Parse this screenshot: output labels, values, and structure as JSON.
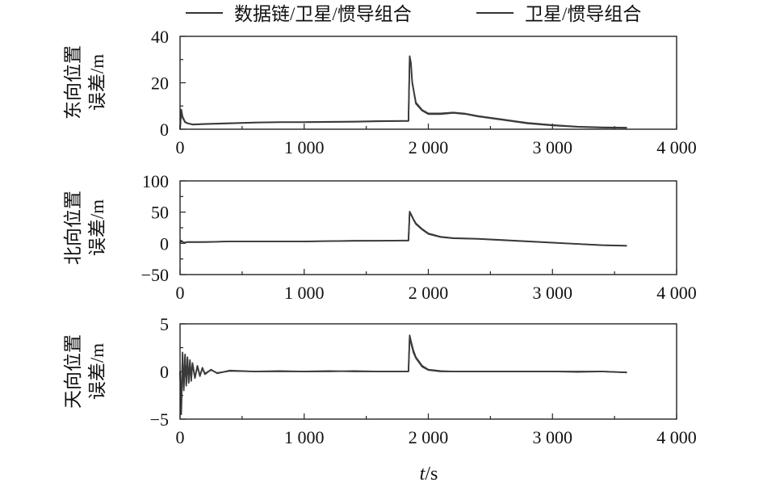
{
  "legend": {
    "items": [
      {
        "label": "数据链/卫星/惯导组合",
        "color": "#333333"
      },
      {
        "label": "卫星/惯导组合",
        "color": "#333333"
      }
    ]
  },
  "xaxis_title": {
    "italic": "t",
    "rest": "/s"
  },
  "chart_data": [
    {
      "type": "line",
      "ylabel": [
        "东向位置",
        "误差/m"
      ],
      "xlim": [
        0,
        4000
      ],
      "ylim": [
        0,
        40
      ],
      "xticks": [
        0,
        1000,
        2000,
        3000,
        4000
      ],
      "xtick_labels": [
        "0",
        "1 000",
        "2 000",
        "3 000",
        "4 000"
      ],
      "yticks": [
        0,
        20,
        40
      ],
      "ytick_labels": [
        "0",
        "20",
        "40"
      ],
      "grid": false,
      "series": [
        {
          "name": "数据链/卫星/惯导组合",
          "x": [
            0,
            10,
            20,
            40,
            60,
            100,
            200,
            400,
            600,
            800,
            1000,
            1200,
            1400,
            1600,
            1800,
            1840,
            1850,
            1860,
            1870,
            1900,
            1950,
            2000,
            2100,
            2200,
            2300,
            2400,
            2600,
            2800,
            3000,
            3200,
            3400,
            3600
          ],
          "y": [
            0,
            8,
            5,
            3,
            2.5,
            2,
            2.2,
            2.5,
            2.8,
            3,
            3,
            3.1,
            3.2,
            3.4,
            3.5,
            3.5,
            31,
            28,
            20,
            11,
            8,
            6.5,
            6.5,
            7,
            6.5,
            5.5,
            4,
            2.5,
            1.6,
            1,
            0.7,
            0.6
          ]
        },
        {
          "name": "卫星/惯导组合",
          "x": [
            0,
            10,
            20,
            40,
            60,
            100,
            200,
            400,
            600,
            800,
            1000,
            1200,
            1400,
            1600,
            1800,
            1840,
            1850,
            1860,
            1870,
            1900,
            1950,
            2000,
            2100,
            2200,
            2300,
            2400,
            2600,
            2800,
            3000,
            3200,
            3400,
            3600
          ],
          "y": [
            0,
            8.5,
            5.5,
            3.2,
            2.6,
            2.1,
            2.3,
            2.6,
            2.9,
            3.1,
            3.1,
            3.2,
            3.3,
            3.5,
            3.6,
            3.6,
            31.5,
            28.5,
            20.5,
            11.5,
            8.3,
            6.8,
            6.8,
            7.2,
            6.7,
            5.7,
            4.2,
            2.7,
            1.8,
            1.1,
            0.8,
            0.7
          ]
        }
      ]
    },
    {
      "type": "line",
      "ylabel": [
        "北向位置",
        "误差/m"
      ],
      "xlim": [
        0,
        4000
      ],
      "ylim": [
        -50,
        100
      ],
      "xticks": [
        0,
        1000,
        2000,
        3000,
        4000
      ],
      "xtick_labels": [
        "0",
        "1 000",
        "2 000",
        "3 000",
        "4 000"
      ],
      "yticks": [
        -50,
        0,
        50,
        100
      ],
      "ytick_labels": [
        "−50",
        "0",
        "50",
        "100"
      ],
      "grid": false,
      "series": [
        {
          "name": "数据链/卫星/惯导组合",
          "x": [
            0,
            10,
            30,
            60,
            100,
            200,
            400,
            600,
            800,
            1000,
            1200,
            1400,
            1600,
            1800,
            1840,
            1850,
            1860,
            1880,
            1900,
            1950,
            2000,
            2100,
            2200,
            2400,
            2600,
            2800,
            3000,
            3200,
            3400,
            3600
          ],
          "y": [
            0,
            4,
            1,
            2,
            2,
            2,
            3,
            3,
            3,
            3,
            3.5,
            4,
            4,
            4.5,
            4.5,
            50,
            46,
            38,
            31,
            22,
            15,
            10,
            8,
            7,
            5,
            3,
            1,
            -1,
            -3,
            -4
          ]
        },
        {
          "name": "卫星/惯导组合",
          "x": [
            0,
            10,
            30,
            60,
            100,
            200,
            400,
            600,
            800,
            1000,
            1200,
            1400,
            1600,
            1800,
            1840,
            1850,
            1860,
            1880,
            1900,
            1950,
            2000,
            2100,
            2200,
            2400,
            2600,
            2800,
            3000,
            3200,
            3400,
            3600
          ],
          "y": [
            0,
            4.5,
            1.2,
            2.2,
            2.1,
            2.2,
            3.1,
            3.2,
            3.2,
            3.2,
            3.7,
            4.1,
            4.2,
            4.6,
            4.6,
            51,
            47,
            39,
            32,
            23,
            16,
            10.5,
            8.5,
            7.4,
            5.3,
            3.3,
            1.2,
            -0.8,
            -2.8,
            -3.8
          ]
        }
      ]
    },
    {
      "type": "line",
      "ylabel": [
        "天向位置",
        "误差/m"
      ],
      "xlim": [
        0,
        4000
      ],
      "ylim": [
        -5,
        5
      ],
      "xticks": [
        0,
        1000,
        2000,
        3000,
        4000
      ],
      "xtick_labels": [
        "0",
        "1 000",
        "2 000",
        "3 000",
        "4 000"
      ],
      "yticks": [
        -5,
        0,
        5
      ],
      "ytick_labels": [
        "−5",
        "0",
        "5"
      ],
      "grid": false,
      "series": [
        {
          "name": "数据链/卫星/惯导组合",
          "x": [
            0,
            10,
            20,
            30,
            40,
            50,
            60,
            70,
            80,
            90,
            100,
            120,
            140,
            160,
            180,
            200,
            250,
            300,
            400,
            600,
            800,
            1000,
            1200,
            1400,
            1600,
            1800,
            1840,
            1850,
            1860,
            1880,
            1900,
            1950,
            2000,
            2100,
            2200,
            2400,
            2600,
            2800,
            3000,
            3200,
            3400,
            3600
          ],
          "y": [
            0,
            -4.5,
            2,
            -2,
            1.8,
            -1.5,
            1.5,
            -1.2,
            1.2,
            -1,
            0.9,
            -0.7,
            0.6,
            -0.5,
            0.4,
            -0.3,
            0.2,
            -0.2,
            0.1,
            0,
            0.05,
            0,
            0,
            0.05,
            0,
            0,
            0,
            3.8,
            3.2,
            2.2,
            1.5,
            0.6,
            0.2,
            0.05,
            0,
            0,
            0,
            0,
            0,
            -0.05,
            0,
            -0.1
          ]
        },
        {
          "name": "卫星/惯导组合",
          "x": [
            0,
            10,
            20,
            30,
            40,
            50,
            60,
            70,
            80,
            90,
            100,
            120,
            140,
            160,
            180,
            200,
            250,
            300,
            400,
            600,
            800,
            1000,
            1200,
            1400,
            1600,
            1800,
            1840,
            1850,
            1860,
            1880,
            1900,
            1950,
            2000,
            2100,
            2200,
            2400,
            2600,
            2800,
            3000,
            3200,
            3400,
            3600
          ],
          "y": [
            0,
            -4.2,
            1.8,
            -1.8,
            1.6,
            -1.3,
            1.3,
            -1,
            1,
            -0.8,
            0.8,
            -0.6,
            0.5,
            -0.4,
            0.3,
            -0.2,
            0.15,
            -0.15,
            0.05,
            0,
            0,
            0,
            0.05,
            0,
            0,
            0,
            0,
            3.6,
            3,
            2,
            1.4,
            0.5,
            0.15,
            0,
            0,
            0,
            0,
            0,
            0,
            0,
            0,
            -0.1
          ]
        }
      ]
    }
  ]
}
